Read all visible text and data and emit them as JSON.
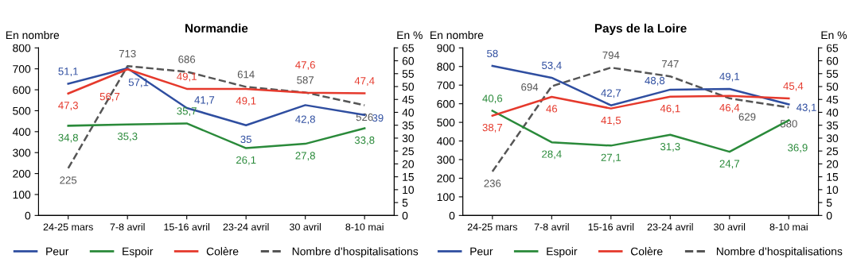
{
  "chart_data": [
    {
      "type": "line",
      "title": "Normandie",
      "ylabel": "En nombre",
      "y2label": "En %",
      "categories": [
        "24-25 mars",
        "7-8 avril",
        "15-16 avril",
        "23-24 avril",
        "30 avril",
        "8-10 mai"
      ],
      "ylim": [
        0,
        800
      ],
      "yticks": [
        0,
        100,
        200,
        300,
        400,
        500,
        600,
        700,
        800
      ],
      "y2lim": [
        0,
        65
      ],
      "y2ticks": [
        0,
        5,
        10,
        15,
        20,
        25,
        30,
        35,
        40,
        45,
        50,
        55,
        60,
        65
      ],
      "legend": "bottom",
      "grid": false,
      "data_labels": true,
      "series": [
        {
          "name": "Peur",
          "color": "#2f4ea0",
          "axis": "y2",
          "line_style": "solid",
          "values": [
            51.1,
            57.1,
            41.7,
            35,
            42.8,
            39
          ],
          "value_labels": [
            "51,1",
            "57,1",
            "41,7",
            "35",
            "42,8",
            "39"
          ]
        },
        {
          "name": "Espoir",
          "color": "#2a8a3a",
          "axis": "y2",
          "line_style": "solid",
          "values": [
            34.8,
            35.3,
            35.7,
            26.1,
            27.8,
            33.8
          ],
          "value_labels": [
            "34,8",
            "35,3",
            "35,7",
            "26,1",
            "27,8",
            "33,8"
          ]
        },
        {
          "name": "Colère",
          "color": "#e5392c",
          "axis": "y2",
          "line_style": "solid",
          "values": [
            47.3,
            56.7,
            49.1,
            49.1,
            47.6,
            47.4
          ],
          "value_labels": [
            "47,3",
            "56,7",
            "49,1",
            "49,1",
            "47,6",
            "47,4"
          ]
        },
        {
          "name": "Nombre d’hospitalisations",
          "color": "#555555",
          "axis": "y",
          "line_style": "dashed",
          "values": [
            225,
            713,
            686,
            614,
            587,
            526
          ],
          "value_labels": [
            "225",
            "713",
            "686",
            "614",
            "587",
            "526"
          ]
        }
      ]
    },
    {
      "type": "line",
      "title": "Pays de la Loire",
      "ylabel": "En nombre",
      "y2label": "En %",
      "categories": [
        "24-25 mars",
        "7-8 avril",
        "15-16 avril",
        "23-24 avril",
        "30 avril",
        "8-10 mai"
      ],
      "ylim": [
        0,
        900
      ],
      "yticks": [
        0,
        100,
        200,
        300,
        400,
        500,
        600,
        700,
        800,
        900
      ],
      "y2lim": [
        0,
        65
      ],
      "y2ticks": [
        0,
        5,
        10,
        15,
        20,
        25,
        30,
        35,
        40,
        45,
        50,
        55,
        60,
        65
      ],
      "legend": "bottom",
      "grid": false,
      "data_labels": true,
      "series": [
        {
          "name": "Peur",
          "color": "#2f4ea0",
          "axis": "y2",
          "line_style": "solid",
          "values": [
            58,
            53.4,
            42.7,
            48.8,
            49.1,
            43.1
          ],
          "value_labels": [
            "58",
            "53,4",
            "42,7",
            "48,8",
            "49,1",
            "43,1"
          ]
        },
        {
          "name": "Espoir",
          "color": "#2a8a3a",
          "axis": "y2",
          "line_style": "solid",
          "values": [
            40.6,
            28.4,
            27.1,
            31.3,
            24.7,
            36.9
          ],
          "value_labels": [
            "40,6",
            "28,4",
            "27,1",
            "31,3",
            "24,7",
            "36,9"
          ]
        },
        {
          "name": "Colère",
          "color": "#e5392c",
          "axis": "y2",
          "line_style": "solid",
          "values": [
            38.7,
            46,
            41.5,
            46.1,
            46.4,
            45.4
          ],
          "value_labels": [
            "38,7",
            "46",
            "41,5",
            "46,1",
            "46,4",
            "45,4"
          ]
        },
        {
          "name": "Nombre d’hospitalisations",
          "color": "#555555",
          "axis": "y",
          "line_style": "dashed",
          "values": [
            236,
            694,
            794,
            747,
            629,
            580
          ],
          "value_labels": [
            "236",
            "694",
            "794",
            "747",
            "629",
            "580"
          ]
        }
      ]
    }
  ]
}
